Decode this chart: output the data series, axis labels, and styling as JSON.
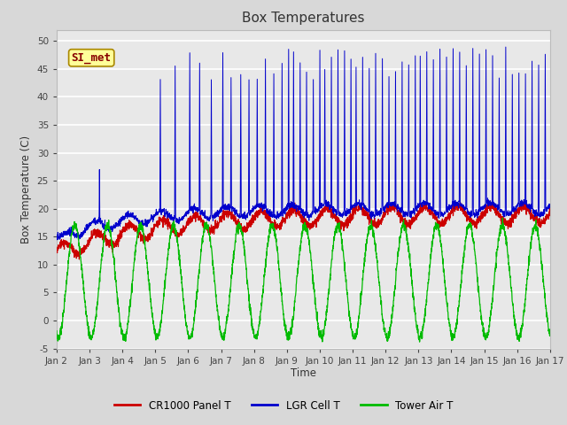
{
  "title": "Box Temperatures",
  "ylabel": "Box Temperature (C)",
  "xlabel": "Time",
  "ylim": [
    -5,
    52
  ],
  "xlim": [
    0,
    15
  ],
  "xtick_labels": [
    "Jan 2",
    "Jan 3",
    "Jan 4",
    "Jan 5",
    "Jan 6",
    "Jan 7",
    "Jan 8",
    "Jan 9",
    "Jan 10",
    "Jan 11",
    "Jan 12",
    "Jan 13",
    "Jan 14",
    "Jan 15",
    "Jan 16",
    "Jan 17"
  ],
  "xtick_positions": [
    0,
    1,
    2,
    3,
    4,
    5,
    6,
    7,
    8,
    9,
    10,
    11,
    12,
    13,
    14,
    15
  ],
  "ytick_labels": [
    "-5",
    "0",
    "5",
    "10",
    "15",
    "20",
    "25",
    "30",
    "35",
    "40",
    "45",
    "50"
  ],
  "ytick_positions": [
    -5,
    0,
    5,
    10,
    15,
    20,
    25,
    30,
    35,
    40,
    45,
    50
  ],
  "fig_bg_color": "#d8d8d8",
  "plot_bg_color": "#e8e8e8",
  "grid_color": "white",
  "line_colors": {
    "panel": "#cc0000",
    "lgr": "#0000cc",
    "tower": "#00bb00"
  },
  "legend_labels": [
    "CR1000 Panel T",
    "LGR Cell T",
    "Tower Air T"
  ],
  "watermark_text": "SI_met",
  "watermark_bg": "#ffff99",
  "watermark_border": "#aa8800"
}
